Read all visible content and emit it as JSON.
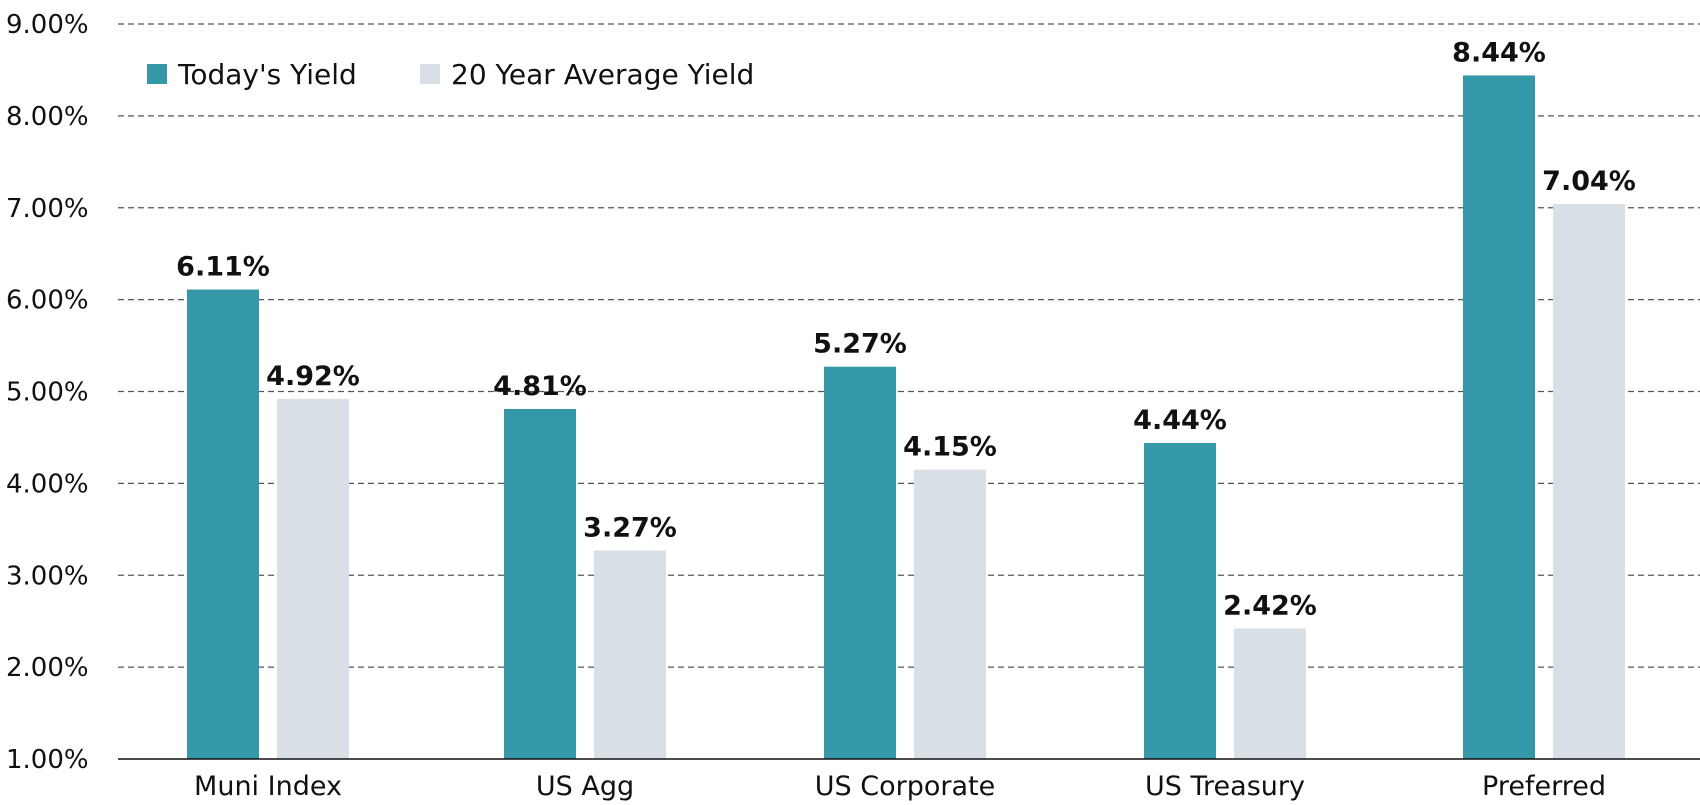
{
  "chart_data": {
    "type": "bar",
    "title": "",
    "xlabel": "",
    "ylabel": "",
    "categories": [
      "Muni Index",
      "US Agg",
      "US Corporate",
      "US Treasury",
      "Preferred"
    ],
    "series": [
      {
        "name": "Today's Yield",
        "color": "#3598a9",
        "values": [
          6.11,
          4.81,
          5.27,
          4.44,
          8.44
        ],
        "labels": [
          "6.11%",
          "4.81%",
          "5.27%",
          "4.44%",
          "8.44%"
        ]
      },
      {
        "name": "20 Year Average Yield",
        "color": "#d9dfe6",
        "values": [
          4.92,
          3.27,
          4.15,
          2.42,
          7.04
        ],
        "labels": [
          "4.92%",
          "3.27%",
          "4.15%",
          "2.42%",
          "7.04%"
        ]
      }
    ],
    "ylim": [
      1,
      9
    ],
    "yticks": [
      1,
      2,
      3,
      4,
      5,
      6,
      7,
      8,
      9
    ],
    "ytick_labels": [
      "1.00%",
      "2.00%",
      "3.00%",
      "4.00%",
      "5.00%",
      "6.00%",
      "7.00%",
      "8.00%",
      "9.00%"
    ],
    "grid": true,
    "grid_style": "dashed",
    "legend_position": "top-left"
  }
}
